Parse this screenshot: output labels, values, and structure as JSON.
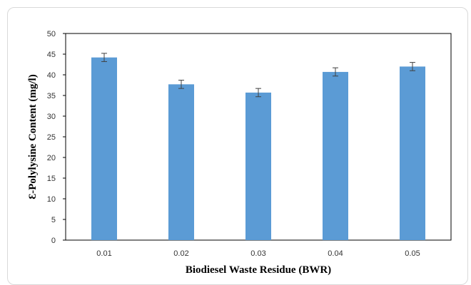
{
  "chart_data": {
    "type": "bar",
    "title": "",
    "xlabel": "Biodiesel Waste Residue (BWR)",
    "ylabel": "Ɛ-Polylysine Content (mg/l)",
    "categories": [
      "0.01",
      "0.02",
      "0.03",
      "0.04",
      "0.05"
    ],
    "values": [
      44.2,
      37.7,
      35.7,
      40.7,
      42.0
    ],
    "error": [
      1.0,
      1.0,
      1.0,
      1.0,
      1.0
    ],
    "ylim": [
      0,
      50
    ],
    "yticks": [
      "0",
      "5",
      "10",
      "15",
      "20",
      "25",
      "30",
      "35",
      "40",
      "45",
      "50"
    ],
    "grid": false,
    "legend": "none",
    "bar_color": "#5b9bd5",
    "error_color": "#404040"
  }
}
